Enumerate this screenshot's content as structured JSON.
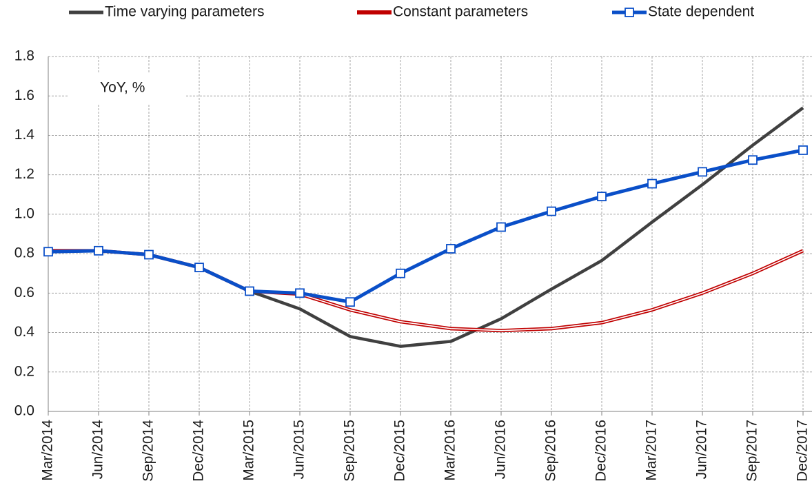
{
  "chart_data": {
    "type": "line",
    "annotation": "YoY, %",
    "categories": [
      "Mar/2014",
      "Jun/2014",
      "Sep/2014",
      "Dec/2014",
      "Mar/2015",
      "Jun/2015",
      "Sep/2015",
      "Dec/2015",
      "Mar/2016",
      "Jun/2016",
      "Sep/2016",
      "Dec/2016",
      "Mar/2017",
      "Jun/2017",
      "Sep/2017",
      "Dec/2017"
    ],
    "series": [
      {
        "name": "Time varying parameters",
        "color": "#404040",
        "values": [
          0.81,
          0.815,
          0.795,
          0.73,
          0.61,
          0.52,
          0.38,
          0.33,
          0.355,
          0.47,
          0.62,
          0.765,
          0.96,
          1.15,
          1.35,
          1.54
        ]
      },
      {
        "name": "Constant parameters",
        "color": "#c00000",
        "line": "double",
        "values": [
          0.815,
          0.815,
          0.795,
          0.73,
          0.61,
          0.595,
          0.515,
          0.455,
          0.42,
          0.41,
          0.42,
          0.45,
          0.515,
          0.6,
          0.7,
          0.815
        ]
      },
      {
        "name": "State dependent",
        "color": "#0a4fc8",
        "marker": "square",
        "values": [
          0.81,
          0.815,
          0.795,
          0.73,
          0.61,
          0.6,
          0.555,
          0.7,
          0.825,
          0.935,
          1.015,
          1.09,
          1.155,
          1.215,
          1.275,
          1.325
        ]
      }
    ],
    "ylim": [
      0,
      1.8
    ],
    "yticks": [
      {
        "value": 0,
        "label": "0.0"
      },
      0.2,
      0.4,
      0.6,
      0.8,
      {
        "value": 1,
        "label": "1.0"
      },
      1.2,
      1.4,
      1.6,
      1.8
    ],
    "grid": true
  }
}
